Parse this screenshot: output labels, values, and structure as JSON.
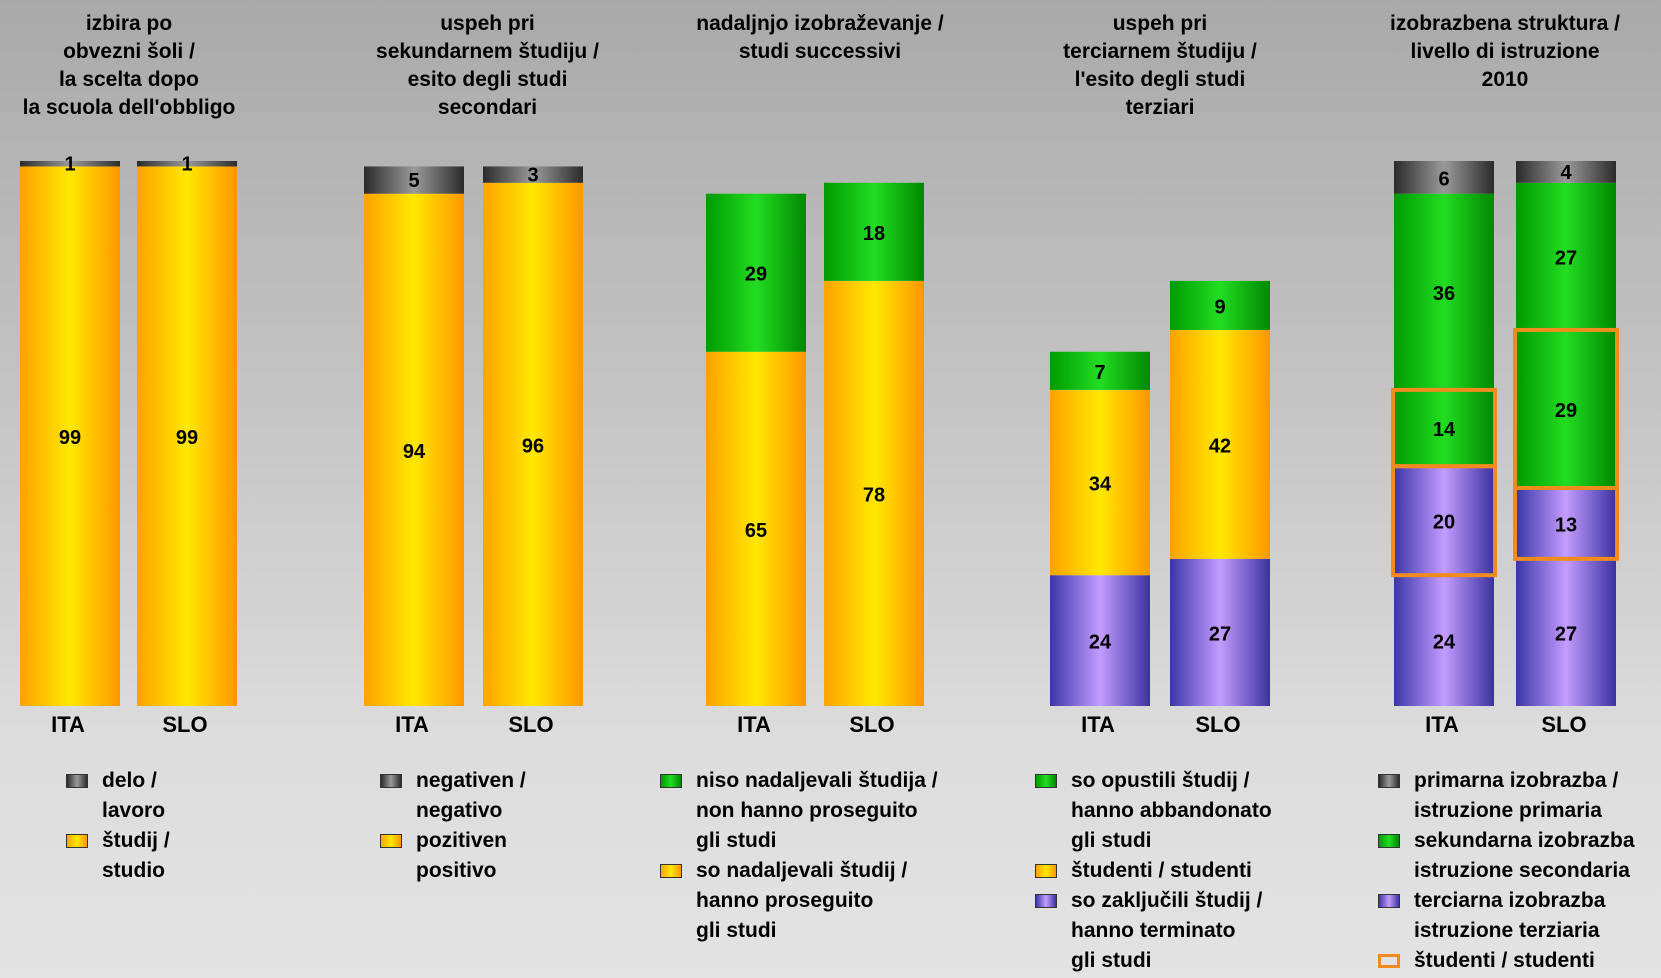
{
  "colors": {
    "gray": "#555555",
    "yellow": "#ffd700",
    "green": "#1ec81e",
    "purple": "#9a7cde",
    "outline": "#f08c1e"
  },
  "chart_data": [
    {
      "type": "bar",
      "stacked": true,
      "title": "izbira po\nobvezni šoli /\nla scelta dopo\nla scuola dell'obbligo",
      "categories": [
        "ITA",
        "SLO"
      ],
      "series": [
        {
          "name": "študij /\nstudio",
          "color": "yellow",
          "values": [
            99,
            99
          ]
        },
        {
          "name": "delo /\nlavoro",
          "color": "gray",
          "values": [
            1,
            1
          ]
        }
      ],
      "legend": [
        {
          "label": "delo /\nlavoro",
          "color": "gray",
          "style": "fill"
        },
        {
          "label": "študij /\nstudio",
          "color": "yellow",
          "style": "fill"
        }
      ]
    },
    {
      "type": "bar",
      "stacked": true,
      "title": "uspeh pri\nsekundarnem študiju /\nesito degli studi\nsecondari",
      "categories": [
        "ITA",
        "SLO"
      ],
      "series": [
        {
          "name": "pozitiven\npositivo",
          "color": "yellow",
          "values": [
            94,
            96
          ]
        },
        {
          "name": "negativen /\nnegativo",
          "color": "gray",
          "values": [
            5,
            3
          ]
        }
      ],
      "legend": [
        {
          "label": "negativen /\nnegativo",
          "color": "gray",
          "style": "fill"
        },
        {
          "label": "pozitiven\npositivo",
          "color": "yellow",
          "style": "fill"
        }
      ]
    },
    {
      "type": "bar",
      "stacked": true,
      "title": "nadaljnjo izobraževanje /\nstudi successivi",
      "categories": [
        "ITA",
        "SLO"
      ],
      "series": [
        {
          "name": "so nadaljevali študij /\nhanno proseguito\ngli studi",
          "color": "yellow",
          "values": [
            65,
            78
          ]
        },
        {
          "name": "niso nadaljevali študija /\nnon hanno proseguito\ngli studi",
          "color": "green",
          "values": [
            29,
            18
          ]
        }
      ],
      "legend": [
        {
          "label": "niso nadaljevali študija /\nnon hanno proseguito\ngli studi",
          "color": "green",
          "style": "fill"
        },
        {
          "label": "so nadaljevali študij /\nhanno proseguito\ngli studi",
          "color": "yellow",
          "style": "fill"
        }
      ]
    },
    {
      "type": "bar",
      "stacked": true,
      "title": "uspeh pri\nterciarnem študiju /\nl'esito degli studi\nterziari",
      "categories": [
        "ITA",
        "SLO"
      ],
      "series": [
        {
          "name": "so zaključili študij /\nhanno terminato\ngli studi",
          "color": "purple",
          "values": [
            24,
            27
          ]
        },
        {
          "name": "študenti / studenti",
          "color": "yellow",
          "values": [
            34,
            42
          ]
        },
        {
          "name": "so opustili študij /\nhanno abbandonato\ngli studi",
          "color": "green",
          "values": [
            7,
            9
          ]
        }
      ],
      "legend": [
        {
          "label": "so opustili študij /\nhanno abbandonato\ngli studi",
          "color": "green",
          "style": "fill"
        },
        {
          "label": "študenti / studenti",
          "color": "yellow",
          "style": "fill"
        },
        {
          "label": "so zaključili študij /\nhanno terminato\ngli studi",
          "color": "purple",
          "style": "fill"
        }
      ]
    },
    {
      "type": "bar",
      "stacked": true,
      "title": "izobrazbena struktura /\nlivello di istruzione\n2010",
      "categories": [
        "ITA",
        "SLO"
      ],
      "series": [
        {
          "name": "terciarna izobrazba\nistruzione terziaria",
          "color": "purple",
          "values": [
            24,
            27
          ]
        },
        {
          "name": "terciarna izobrazba\nistruzione terziaria",
          "color": "purple",
          "values": [
            20,
            13
          ],
          "students": true
        },
        {
          "name": "sekundarna izobrazba\nistruzione secondaria",
          "color": "green",
          "values": [
            14,
            29
          ],
          "students": true
        },
        {
          "name": "sekundarna izobrazba\nistruzione secondaria",
          "color": "green",
          "values": [
            36,
            27
          ]
        },
        {
          "name": "primarna izobrazba /\nistruzione primaria",
          "color": "gray",
          "values": [
            6,
            4
          ]
        }
      ],
      "legend": [
        {
          "label": "primarna izobrazba /\nistruzione primaria",
          "color": "gray",
          "style": "fill"
        },
        {
          "label": "sekundarna izobrazba\nistruzione secondaria",
          "color": "green",
          "style": "fill"
        },
        {
          "label": "terciarna izobrazba\nistruzione terziaria",
          "color": "purple",
          "style": "fill"
        },
        {
          "label": "študenti / studenti",
          "color": "outline",
          "style": "outline"
        }
      ]
    }
  ]
}
